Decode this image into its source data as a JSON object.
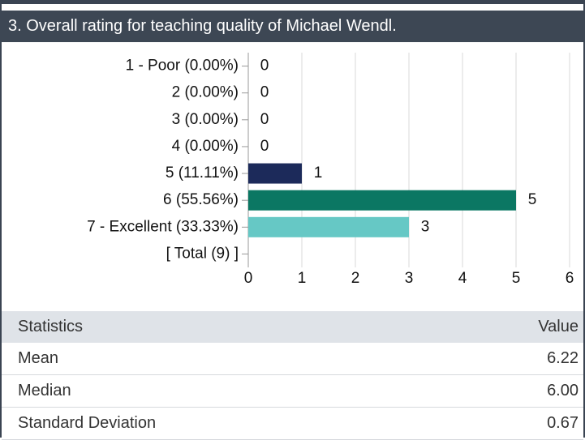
{
  "header": {
    "title": "3. Overall rating for teaching quality of Michael Wendl."
  },
  "chart_data": {
    "type": "bar",
    "orientation": "horizontal",
    "categories": [
      "1 - Poor (0.00%)",
      "2 (0.00%)",
      "3 (0.00%)",
      "4 (0.00%)",
      "5 (11.11%)",
      "6 (55.56%)",
      "7 - Excellent (33.33%)",
      "[ Total (9) ]"
    ],
    "values": [
      0,
      0,
      0,
      0,
      1,
      5,
      3,
      null
    ],
    "colors": [
      null,
      null,
      null,
      null,
      "#1c2a5a",
      "#0b7763",
      "#66c8c5",
      null
    ],
    "xlim": [
      0,
      6
    ],
    "xticks": [
      0,
      1,
      2,
      3,
      4,
      5,
      6
    ],
    "grid": true
  },
  "table": {
    "header": [
      "Statistics",
      "Value"
    ],
    "rows": [
      [
        "Mean",
        "6.22"
      ],
      [
        "Median",
        "6.00"
      ],
      [
        "Standard Deviation",
        "0.67"
      ]
    ]
  }
}
